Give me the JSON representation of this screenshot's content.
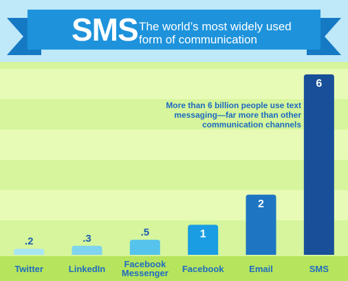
{
  "chart_data": {
    "type": "bar",
    "title": "SMS",
    "subtitle": [
      "The world’s most widely used",
      "form of communication"
    ],
    "annotation": [
      "More than 6 billion people use text",
      "messaging—far more than other",
      "communication channels"
    ],
    "categories": [
      "Twitter",
      "LinkedIn",
      "Facebook Messenger",
      "Facebook",
      "Email",
      "SMS"
    ],
    "values": [
      0.2,
      0.3,
      0.5,
      1,
      2,
      6
    ],
    "value_labels": [
      ".2",
      ".3",
      ".5",
      "1",
      "2",
      "6"
    ],
    "colors": [
      "#a9e6f3",
      "#7fd4ee",
      "#56c3ec",
      "#1a9de2",
      "#1e76c2",
      "#184f98"
    ]
  }
}
